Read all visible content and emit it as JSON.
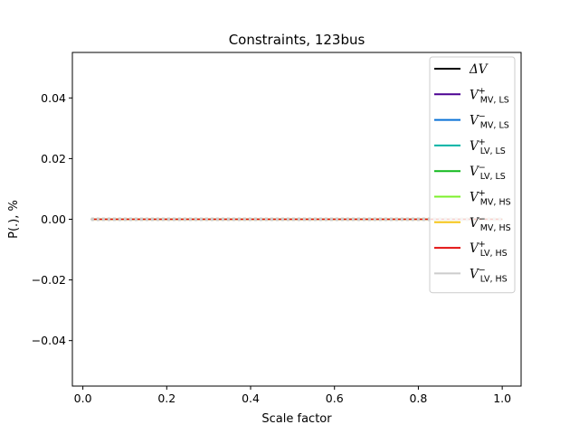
{
  "chart_data": {
    "type": "line",
    "title": "Constraints, 123bus",
    "xlabel": "Scale factor",
    "ylabel": "P(.), %",
    "xlim": [
      -0.025,
      1.045
    ],
    "ylim": [
      -0.055,
      0.055
    ],
    "x_ticks": [
      0.0,
      0.2,
      0.4,
      0.6,
      0.8,
      1.0
    ],
    "x_tick_labels": [
      "0.0",
      "0.2",
      "0.4",
      "0.6",
      "0.8",
      "1.0"
    ],
    "y_ticks": [
      0.04,
      0.02,
      0.0,
      -0.02,
      -0.04
    ],
    "y_tick_labels": [
      "0.04",
      "0.02",
      "0.00",
      "−0.02",
      "−0.04"
    ],
    "grid": false,
    "legend_position": "top-right",
    "x": [
      0.02,
      0.04,
      0.06,
      0.08,
      0.1,
      0.12,
      0.14,
      0.16,
      0.18,
      0.2,
      0.22,
      0.24,
      0.26,
      0.28,
      0.3,
      0.32,
      0.34,
      0.36,
      0.38,
      0.4,
      0.42,
      0.44,
      0.46,
      0.48,
      0.5,
      0.52,
      0.54,
      0.56,
      0.58,
      0.6,
      0.62,
      0.64,
      0.66,
      0.68,
      0.7,
      0.72,
      0.74,
      0.76,
      0.78,
      0.8,
      0.82,
      0.84,
      0.86,
      0.88,
      0.9,
      0.92,
      0.94,
      0.96,
      0.98,
      1.0
    ],
    "series": [
      {
        "name": "ΔV",
        "legend_main": "ΔV",
        "legend_sup": "",
        "legend_sub": "",
        "color": "#000000",
        "value": 0
      },
      {
        "name": "V+ MV, LS",
        "legend_main": "V",
        "legend_sup": "+",
        "legend_sub": "MV, LS",
        "color": "#4b0092",
        "value": 0
      },
      {
        "name": "V− MV, LS",
        "legend_main": "V",
        "legend_sup": "−",
        "legend_sub": "MV, LS",
        "color": "#0a72d6",
        "value": 0
      },
      {
        "name": "V+ LV, LS",
        "legend_main": "V",
        "legend_sup": "+",
        "legend_sub": "LV, LS",
        "color": "#00b3a4",
        "value": 0
      },
      {
        "name": "V− LV, LS",
        "legend_main": "V",
        "legend_sup": "−",
        "legend_sub": "LV, LS",
        "color": "#10b91c",
        "value": 0
      },
      {
        "name": "V+ MV, HS",
        "legend_main": "V",
        "legend_sup": "+",
        "legend_sub": "MV, HS",
        "color": "#7cf02a",
        "value": 0
      },
      {
        "name": "V− MV, HS",
        "legend_main": "V",
        "legend_sup": "−",
        "legend_sub": "MV, HS",
        "color": "#f5c518",
        "value": 0
      },
      {
        "name": "V+ LV, HS",
        "legend_main": "V",
        "legend_sup": "+",
        "legend_sub": "LV, HS",
        "color": "#e31010",
        "value": 0
      },
      {
        "name": "V− LV, HS",
        "legend_main": "V",
        "legend_sup": "−",
        "legend_sub": "LV, HS",
        "color": "#cccccc",
        "value": 0
      }
    ]
  }
}
